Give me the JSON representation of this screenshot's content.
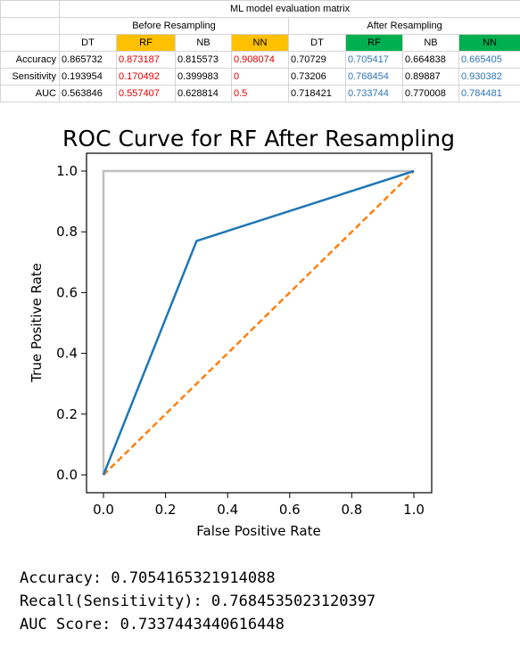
{
  "table": {
    "title": "ML model evaluation matrix",
    "groups": [
      "Before Resampling",
      "After Resampling"
    ],
    "headers": [
      "DT",
      "RF",
      "NB",
      "NN",
      "DT",
      "RF",
      "NB",
      "NN"
    ],
    "header_fills": [
      "",
      "#ffc000",
      "",
      "#ffc000",
      "",
      "#00b050",
      "",
      "#00b050"
    ],
    "rows": [
      {
        "label": "Accuracy",
        "values": [
          "0.865732",
          "0.873187",
          "0.815573",
          "0.908074",
          "0.70729",
          "0.705417",
          "0.664838",
          "0.665405"
        ]
      },
      {
        "label": "Sensitivity",
        "values": [
          "0.193954",
          "0.170492",
          "0.399983",
          "0",
          "0.73206",
          "0.768454",
          "0.89887",
          "0.930382"
        ]
      },
      {
        "label": "AUC",
        "values": [
          "0.563846",
          "0.557407",
          "0.628814",
          "0.5",
          "0.718421",
          "0.733744",
          "0.770008",
          "0.784481"
        ]
      }
    ],
    "value_text_colors": [
      "",
      "#e00000",
      "",
      "#e00000",
      "",
      "#2e75b6",
      "",
      "#2e75b6"
    ]
  },
  "chart_data": {
    "type": "line",
    "title": "ROC Curve for RF After Resampling",
    "xlabel": "False Positive Rate",
    "ylabel": "True Positive Rate",
    "xlim": [
      0,
      1
    ],
    "ylim": [
      0,
      1
    ],
    "xticks": [
      "0.0",
      "0.2",
      "0.4",
      "0.6",
      "0.8",
      "1.0"
    ],
    "yticks": [
      "0.0",
      "0.2",
      "0.4",
      "0.6",
      "0.8",
      "1.0"
    ],
    "grid": false,
    "series": [
      {
        "color": "#1f77b4",
        "dash": false,
        "x": [
          0,
          0.3,
          1
        ],
        "y": [
          0,
          0.77,
          1
        ]
      },
      {
        "color": "#ff7f0e",
        "dash": true,
        "x": [
          0,
          1
        ],
        "y": [
          0,
          1
        ]
      },
      {
        "color": "#bfbfbf",
        "dash": false,
        "x": [
          0,
          0,
          1
        ],
        "y": [
          0,
          1,
          1
        ]
      }
    ]
  },
  "console": {
    "lines": [
      "Accuracy: 0.7054165321914088",
      "Recall(Sensitivity): 0.7684535023120397",
      "AUC Score: 0.7337443440616448"
    ]
  }
}
